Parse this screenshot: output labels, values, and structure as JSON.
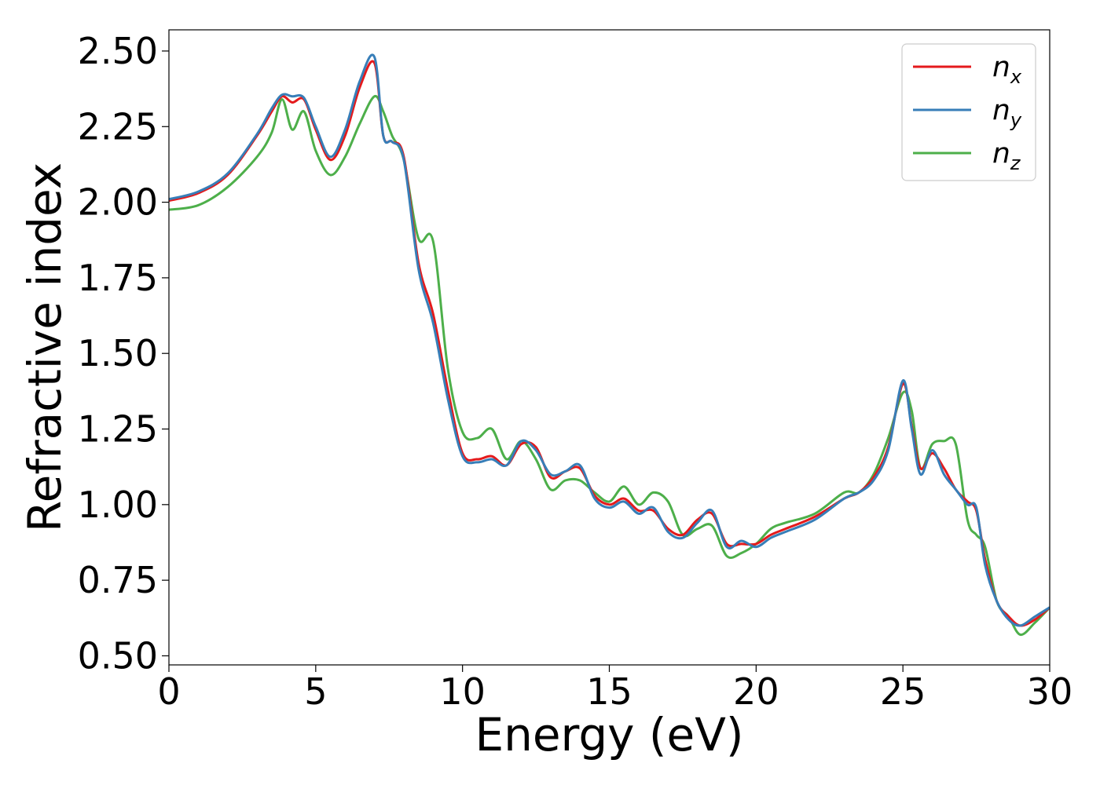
{
  "chart_data": {
    "type": "line",
    "xlabel": "Energy (eV)",
    "ylabel": "Refractive index",
    "xlim": [
      0,
      30
    ],
    "ylim": [
      0.47,
      2.57
    ],
    "xticks": [
      0,
      5,
      10,
      15,
      20,
      25,
      30
    ],
    "xtick_labels": [
      "0",
      "5",
      "10",
      "15",
      "20",
      "25",
      "30"
    ],
    "yticks": [
      0.5,
      0.75,
      1.0,
      1.25,
      1.5,
      1.75,
      2.0,
      2.25,
      2.5
    ],
    "ytick_labels": [
      "0.50",
      "0.75",
      "1.00",
      "1.25",
      "1.50",
      "1.75",
      "2.00",
      "2.25",
      "2.50"
    ],
    "grid": false,
    "legend_position": "top-right",
    "series": [
      {
        "name": "n",
        "subscript": "x",
        "color": "#e41a1c",
        "x": [
          0,
          1,
          2,
          3,
          3.5,
          3.85,
          4.2,
          4.6,
          5.0,
          5.5,
          6.0,
          6.5,
          7.0,
          7.3,
          7.6,
          8.0,
          8.5,
          9.0,
          9.5,
          10.0,
          10.5,
          11.0,
          11.5,
          12.0,
          12.5,
          13.0,
          13.5,
          14.0,
          14.5,
          15.0,
          15.5,
          16.0,
          16.5,
          17.0,
          17.5,
          18.0,
          18.5,
          19.0,
          19.5,
          20.0,
          20.5,
          21.0,
          22.0,
          23.0,
          23.5,
          24.0,
          24.5,
          25.0,
          25.3,
          25.6,
          26.0,
          26.4,
          26.8,
          27.2,
          27.5,
          27.8,
          28.2,
          28.6,
          29.0,
          29.5,
          30.0
        ],
        "values": [
          2.005,
          2.03,
          2.09,
          2.22,
          2.3,
          2.35,
          2.33,
          2.34,
          2.24,
          2.14,
          2.22,
          2.38,
          2.46,
          2.22,
          2.2,
          2.15,
          1.8,
          1.63,
          1.38,
          1.17,
          1.15,
          1.16,
          1.13,
          1.2,
          1.19,
          1.09,
          1.11,
          1.12,
          1.03,
          1.0,
          1.02,
          0.98,
          0.98,
          0.92,
          0.9,
          0.95,
          0.97,
          0.87,
          0.87,
          0.87,
          0.9,
          0.92,
          0.96,
          1.02,
          1.04,
          1.09,
          1.19,
          1.4,
          1.26,
          1.12,
          1.17,
          1.12,
          1.05,
          1.01,
          0.98,
          0.82,
          0.68,
          0.63,
          0.6,
          0.62,
          0.66
        ]
      },
      {
        "name": "n",
        "subscript": "y",
        "color": "#377eb8",
        "x": [
          0,
          1,
          2,
          3,
          3.5,
          3.85,
          4.2,
          4.6,
          5.0,
          5.5,
          6.0,
          6.5,
          7.0,
          7.3,
          7.6,
          8.0,
          8.5,
          9.0,
          9.5,
          10.0,
          10.5,
          11.0,
          11.5,
          12.0,
          12.5,
          13.0,
          13.5,
          14.0,
          14.5,
          15.0,
          15.5,
          16.0,
          16.5,
          17.0,
          17.5,
          18.0,
          18.5,
          19.0,
          19.5,
          20.0,
          20.5,
          21.0,
          22.0,
          23.0,
          23.5,
          24.0,
          24.5,
          25.0,
          25.3,
          25.6,
          26.0,
          26.4,
          26.8,
          27.2,
          27.5,
          27.8,
          28.2,
          28.6,
          29.0,
          29.5,
          30.0
        ],
        "values": [
          2.01,
          2.035,
          2.095,
          2.225,
          2.31,
          2.355,
          2.35,
          2.345,
          2.25,
          2.15,
          2.24,
          2.4,
          2.48,
          2.22,
          2.2,
          2.14,
          1.78,
          1.6,
          1.35,
          1.16,
          1.14,
          1.15,
          1.13,
          1.21,
          1.18,
          1.1,
          1.11,
          1.13,
          1.02,
          0.99,
          1.01,
          0.97,
          0.99,
          0.91,
          0.89,
          0.94,
          0.98,
          0.86,
          0.88,
          0.86,
          0.89,
          0.91,
          0.95,
          1.02,
          1.04,
          1.08,
          1.18,
          1.41,
          1.25,
          1.1,
          1.18,
          1.1,
          1.05,
          1.0,
          0.99,
          0.8,
          0.68,
          0.62,
          0.6,
          0.63,
          0.66
        ]
      },
      {
        "name": "n",
        "subscript": "z",
        "color": "#4daf4a",
        "x": [
          0,
          1,
          2,
          3,
          3.5,
          3.85,
          4.2,
          4.6,
          5.0,
          5.5,
          6.0,
          6.5,
          7.0,
          7.3,
          7.6,
          8.0,
          8.5,
          9.0,
          9.5,
          10.0,
          10.5,
          11.0,
          11.5,
          12.0,
          12.5,
          13.0,
          13.5,
          14.0,
          14.5,
          15.0,
          15.5,
          16.0,
          16.5,
          17.0,
          17.5,
          18.0,
          18.5,
          19.0,
          19.5,
          20.0,
          20.5,
          21.0,
          22.0,
          23.0,
          23.5,
          24.0,
          24.5,
          25.0,
          25.3,
          25.6,
          26.0,
          26.4,
          26.8,
          27.2,
          27.5,
          27.8,
          28.2,
          28.6,
          29.0,
          29.5,
          30.0
        ],
        "values": [
          1.975,
          1.99,
          2.05,
          2.15,
          2.23,
          2.34,
          2.24,
          2.3,
          2.17,
          2.09,
          2.15,
          2.26,
          2.35,
          2.3,
          2.22,
          2.14,
          1.88,
          1.87,
          1.45,
          1.24,
          1.22,
          1.25,
          1.15,
          1.21,
          1.15,
          1.05,
          1.08,
          1.08,
          1.04,
          1.01,
          1.06,
          1.0,
          1.04,
          1.01,
          0.9,
          0.92,
          0.93,
          0.83,
          0.84,
          0.87,
          0.92,
          0.94,
          0.97,
          1.04,
          1.04,
          1.1,
          1.22,
          1.37,
          1.31,
          1.12,
          1.2,
          1.21,
          1.2,
          0.95,
          0.9,
          0.86,
          0.68,
          0.63,
          0.57,
          0.61,
          0.66
        ]
      }
    ]
  }
}
